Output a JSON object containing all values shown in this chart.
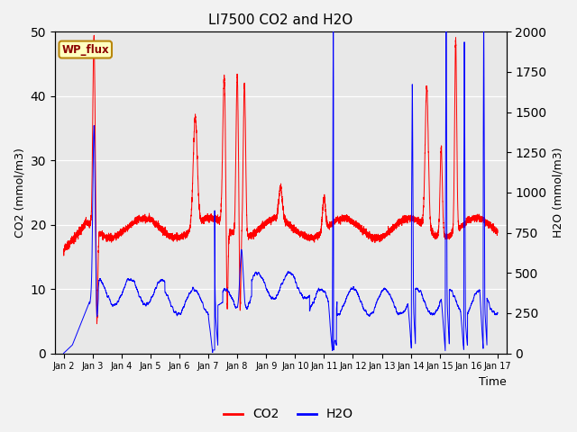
{
  "title": "LI7500 CO2 and H2O",
  "xlabel": "Time",
  "ylabel_left": "CO2 (mmol/m3)",
  "ylabel_right": "H2O (mmol/m3)",
  "co2_color": "#FF0000",
  "h2o_color": "#0000FF",
  "fig_facecolor": "#F2F2F2",
  "plot_facecolor": "#E8E8E8",
  "grid_color": "#FFFFFF",
  "legend_label_co2": "CO2",
  "legend_label_h2o": "H2O",
  "annotation_text": "WP_flux",
  "ylim_left": [
    0,
    50
  ],
  "ylim_right": [
    0,
    2000
  ],
  "xtick_labels": [
    "Jan 2",
    "Jan 3",
    "Jan 4",
    "Jan 5",
    "Jan 6",
    "Jan 7",
    "Jan 8",
    "Jan 9",
    "Jan 10",
    "Jan 11",
    "Jan 12",
    "Jan 13",
    "Jan 14",
    "Jan 15",
    "Jan 16",
    "Jan 17"
  ],
  "n_points": 7200,
  "time_days": 15
}
